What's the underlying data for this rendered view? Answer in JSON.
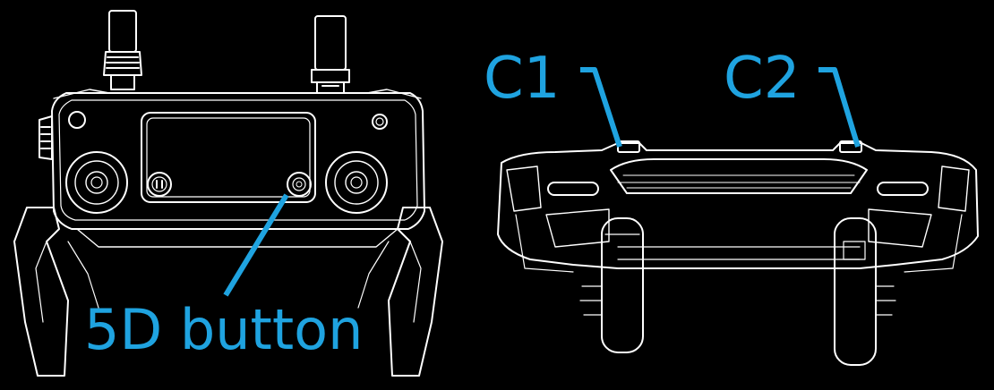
{
  "labels": {
    "five_d": "5D button",
    "c1": "C1",
    "c2": "C2"
  },
  "colors": {
    "background": "#000000",
    "outline": "#ffffff",
    "callout": "#1fa3e0"
  }
}
